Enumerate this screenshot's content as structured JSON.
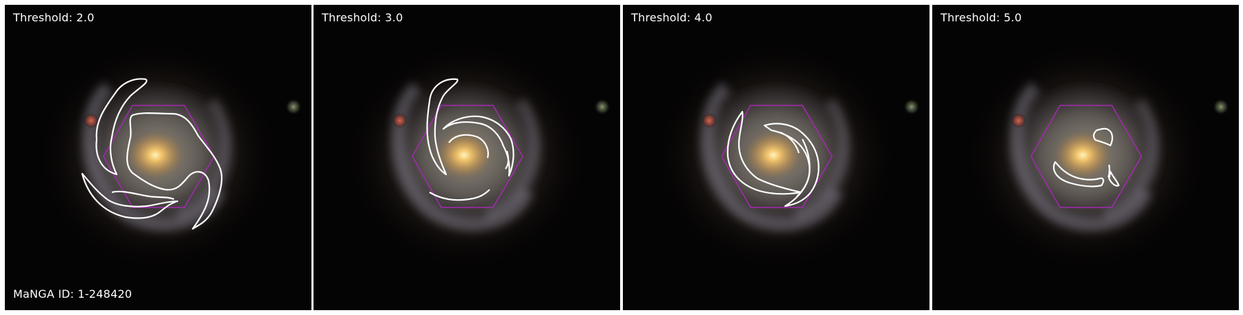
{
  "figure": {
    "manga_id_label": "MaNGA ID: 1-248420",
    "panels": [
      {
        "threshold_label": "Threshold: 2.0"
      },
      {
        "threshold_label": "Threshold: 3.0"
      },
      {
        "threshold_label": "Threshold: 4.0"
      },
      {
        "threshold_label": "Threshold: 5.0"
      }
    ],
    "colors": {
      "background": "#050404",
      "galaxy_core": "#e9b760",
      "galaxy_disk": "#8f8a7c",
      "ifu_hexagon": "#a629b3",
      "contour": "#ffffff",
      "text": "#ffffff",
      "companion_star": "#c0504a"
    },
    "overlay": {
      "footprint_shape": "hexagon",
      "contour_style": "white-outline"
    }
  }
}
